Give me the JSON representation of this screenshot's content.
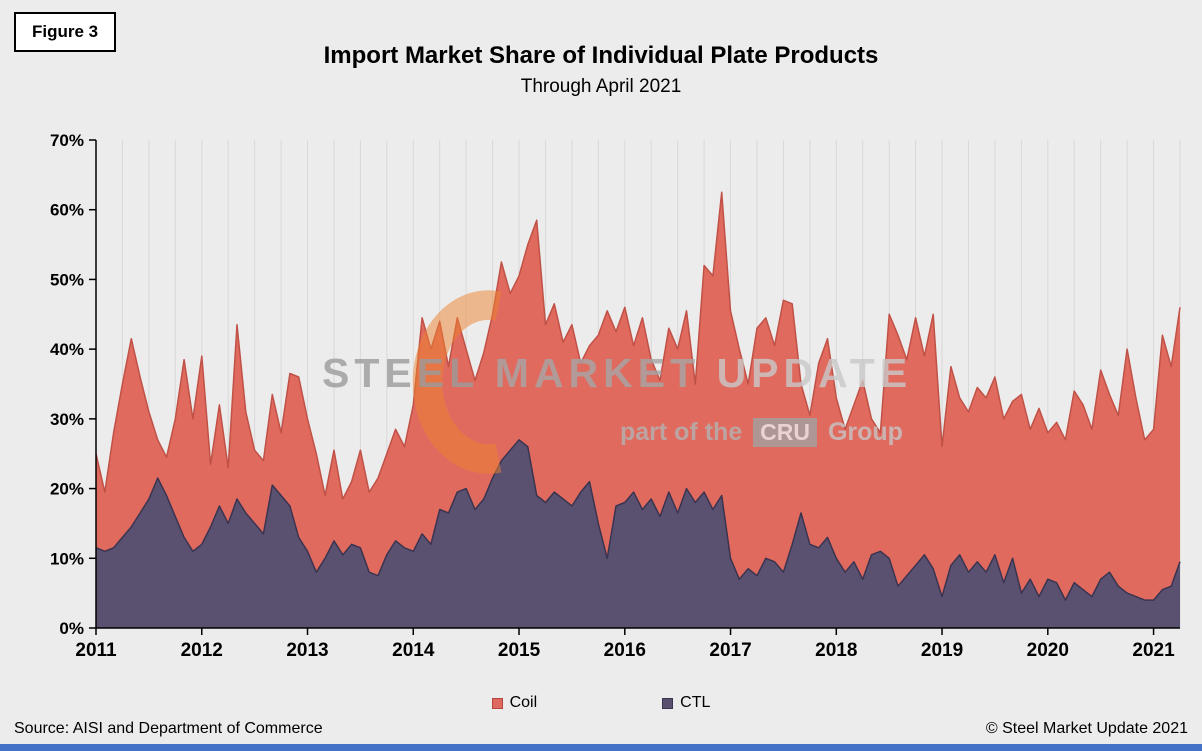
{
  "figure_label": "Figure 3",
  "title": "Import Market Share of Individual Plate Products",
  "subtitle": "Through April 2021",
  "watermark": {
    "word1": "STEEL",
    "word2": "MARKET",
    "word3": "UPDATE",
    "tagline_prefix": "part of the",
    "tagline_box": "CRU",
    "tagline_suffix": "Group"
  },
  "legend": [
    {
      "label": "Coil",
      "color": "#df695e",
      "border": "#b5463c"
    },
    {
      "label": "CTL",
      "color": "#5a5170",
      "border": "#3a3450"
    }
  ],
  "footer": {
    "source": "Source: AISI and Department of Commerce",
    "copyright": "© Steel Market Update 2021"
  },
  "colors": {
    "background": "#ececec",
    "gridline": "#d9d9d9",
    "axis": "#000000",
    "bottom_bar_blue": "#4472c4",
    "watermark_orange": "#ef8330"
  },
  "chart_data": {
    "type": "area",
    "title": "Import Market Share of Individual Plate Products",
    "subtitle": "Through April 2021",
    "x_start": "2011-01",
    "x_end": "2021-04",
    "frequency": "monthly",
    "x_tick_labels": [
      "2011",
      "2012",
      "2013",
      "2014",
      "2015",
      "2016",
      "2017",
      "2018",
      "2019",
      "2020",
      "2021"
    ],
    "y_tick_labels": [
      "0%",
      "10%",
      "20%",
      "30%",
      "40%",
      "50%",
      "60%",
      "70%"
    ],
    "ylim": [
      0,
      70
    ],
    "grid": "vertical-quarterly",
    "legend_position": "bottom",
    "series": [
      {
        "name": "Coil",
        "fill": "#e06a5e",
        "stroke": "#c05146",
        "values": [
          25,
          19.5,
          28,
          35,
          41.5,
          36,
          31,
          27,
          24.5,
          30,
          38.5,
          30,
          39,
          23.5,
          32,
          23,
          43.5,
          31,
          25.5,
          24,
          33.5,
          28,
          36.5,
          36,
          30,
          25,
          19,
          25.5,
          18.5,
          21,
          25.5,
          19.5,
          21.5,
          25,
          28.5,
          26,
          32,
          44.5,
          40,
          44,
          37.5,
          44.5,
          40,
          35.5,
          39.5,
          45,
          52.5,
          48,
          50.5,
          55,
          58.5,
          43.5,
          46.5,
          41,
          43.5,
          38,
          40.5,
          42,
          45.5,
          42.5,
          46,
          40.5,
          44.5,
          38.5,
          35.5,
          43,
          40,
          45.5,
          35,
          52,
          50.5,
          62.5,
          45.5,
          40,
          35,
          43,
          44.5,
          40.5,
          47,
          46.5,
          35,
          30.5,
          38,
          41.5,
          33,
          28.5,
          32,
          35.5,
          30,
          28,
          45,
          42,
          38.5,
          44.5,
          39,
          45,
          26,
          37.5,
          33,
          31,
          34.5,
          33,
          36,
          30,
          32.5,
          33.5,
          28.5,
          31.5,
          28,
          29.5,
          27,
          34,
          32,
          28.5,
          37,
          33.5,
          30.5,
          40,
          33,
          27,
          28.5,
          42,
          37.5,
          46
        ]
      },
      {
        "name": "CTL",
        "fill": "#5a5170",
        "stroke": "#3a3450",
        "values": [
          11.5,
          11,
          11.5,
          13,
          14.5,
          16.5,
          18.5,
          21.5,
          19,
          16,
          13,
          11,
          12,
          14.5,
          17.5,
          15,
          18.5,
          16.5,
          15,
          13.5,
          20.5,
          19,
          17.5,
          13,
          11,
          8,
          10,
          12.5,
          10.5,
          12,
          11.5,
          8,
          7.5,
          10.5,
          12.5,
          11.5,
          11,
          13.5,
          12,
          17,
          16.5,
          19.5,
          20,
          17,
          18.5,
          21.5,
          24,
          25.5,
          27,
          26,
          19,
          18,
          19.5,
          18.5,
          17.5,
          19.5,
          21,
          15,
          10,
          17.5,
          18,
          19.5,
          17,
          18.5,
          16,
          19.5,
          16.5,
          20,
          18,
          19.5,
          17,
          19,
          10,
          7,
          8.5,
          7.5,
          10,
          9.5,
          8,
          12,
          16.5,
          12,
          11.5,
          13,
          10,
          8,
          9.5,
          7,
          10.5,
          11,
          10,
          6,
          7.5,
          9,
          10.5,
          8.5,
          4.5,
          9,
          10.5,
          8,
          9.5,
          8,
          10.5,
          6.5,
          10,
          5,
          7,
          4.5,
          7,
          6.5,
          4,
          6.5,
          5.5,
          4.5,
          7,
          8,
          6,
          5,
          4.5,
          4,
          4,
          5.5,
          6,
          9.5
        ]
      }
    ]
  }
}
